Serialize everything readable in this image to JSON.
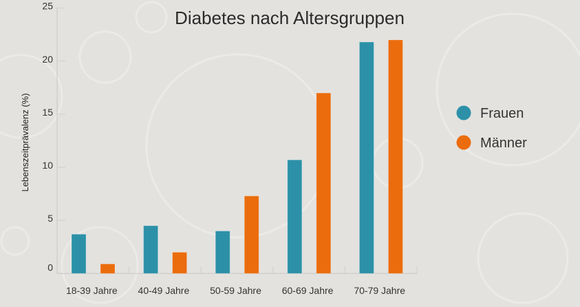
{
  "chart_data": {
    "type": "bar",
    "title": "Diabetes nach Altersgruppen",
    "xlabel": "",
    "ylabel": "Lebenszeitprävalenz (%)",
    "ylim": [
      0,
      25
    ],
    "yticks": [
      "0",
      "5",
      "10",
      "15",
      "20",
      "25"
    ],
    "grid": false,
    "legend_position": "right",
    "categories": [
      "18-39 Jahre",
      "40-49 Jahre",
      "50-59 Jahre",
      "60-69 Jahre",
      "70-79 Jahre"
    ],
    "series": [
      {
        "name": "Frauen",
        "color": "#2c91a8",
        "values": [
          3.7,
          4.5,
          4.0,
          10.7,
          21.8
        ]
      },
      {
        "name": "Männer",
        "color": "#eb6c0c",
        "values": [
          0.9,
          2.0,
          7.3,
          17.0,
          22.0
        ]
      }
    ]
  }
}
